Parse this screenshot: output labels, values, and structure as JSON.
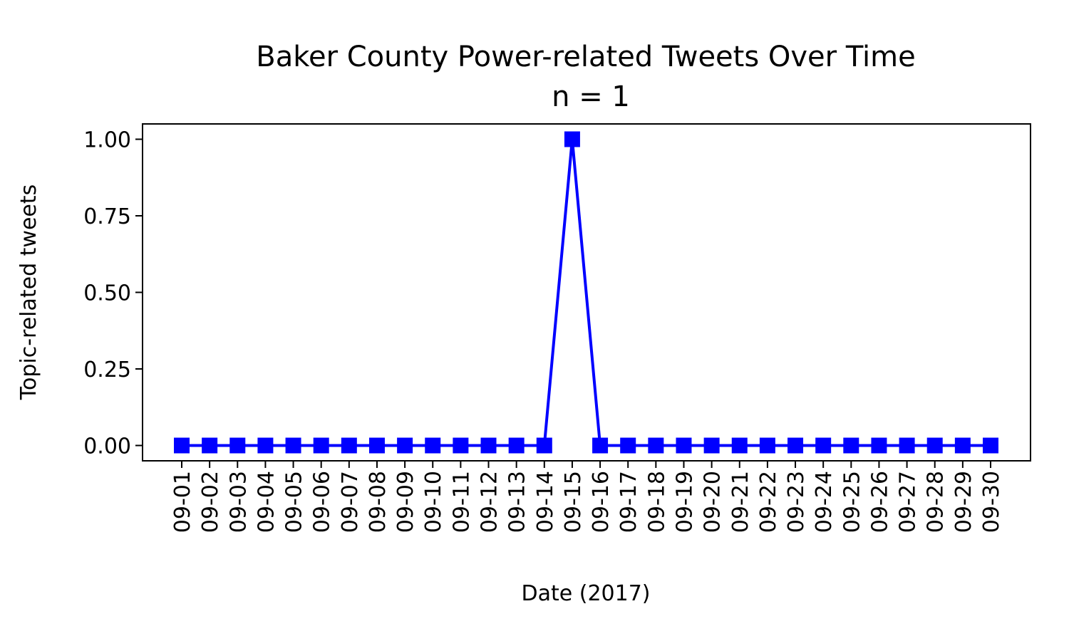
{
  "chart_data": {
    "type": "line",
    "title": "Baker County Power-related Tweets Over Time",
    "subtitle": "n = 1",
    "xlabel": "Date (2017)",
    "ylabel": "Topic-related tweets",
    "categories": [
      "09-01",
      "09-02",
      "09-03",
      "09-04",
      "09-05",
      "09-06",
      "09-07",
      "09-08",
      "09-09",
      "09-10",
      "09-11",
      "09-12",
      "09-13",
      "09-14",
      "09-15",
      "09-16",
      "09-17",
      "09-18",
      "09-19",
      "09-20",
      "09-21",
      "09-22",
      "09-23",
      "09-24",
      "09-25",
      "09-26",
      "09-27",
      "09-28",
      "09-29",
      "09-30"
    ],
    "series": [
      {
        "values": [
          0,
          0,
          0,
          0,
          0,
          0,
          0,
          0,
          0,
          0,
          0,
          0,
          0,
          0,
          1,
          0,
          0,
          0,
          0,
          0,
          0,
          0,
          0,
          0,
          0,
          0,
          0,
          0,
          0,
          0
        ],
        "color": "#0000ff",
        "marker": "square"
      }
    ],
    "ylim": [
      -0.05,
      1.05
    ],
    "yticks": [
      "0.00",
      "0.25",
      "0.50",
      "0.75",
      "1.00"
    ],
    "grid": false,
    "legend": "none"
  }
}
